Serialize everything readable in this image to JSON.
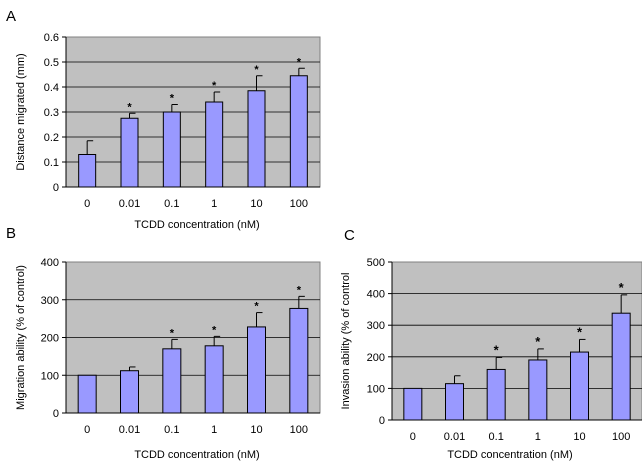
{
  "colors": {
    "plot_bg": "#c0c0c0",
    "bar_fill": "#9999ff",
    "bar_stroke": "#000000",
    "grid": "#000000"
  },
  "chart_data": [
    {
      "type": "bar",
      "panel_label": "A",
      "categories": [
        "0",
        "0.01",
        "0.1",
        "1",
        "10",
        "100"
      ],
      "values": [
        0.13,
        0.275,
        0.3,
        0.34,
        0.385,
        0.445
      ],
      "errors": [
        0.055,
        0.02,
        0.03,
        0.04,
        0.06,
        0.03
      ],
      "significance": [
        "",
        "*",
        "*",
        "*",
        "*",
        "*"
      ],
      "xlabel": "TCDD concentration (nM)",
      "ylabel": "Distance migrated (mm)",
      "ylim": [
        0,
        0.6
      ],
      "yticks": [
        "0",
        "0.1",
        "0.2",
        "0.3",
        "0.4",
        "0.5",
        "0.6"
      ],
      "grid": true
    },
    {
      "type": "bar",
      "panel_label": "B",
      "categories": [
        "0",
        "0.01",
        "0.1",
        "1",
        "10",
        "100"
      ],
      "values": [
        100,
        112,
        170,
        178,
        228,
        277
      ],
      "errors": [
        0,
        10,
        25,
        25,
        38,
        32
      ],
      "significance": [
        "",
        "",
        "*",
        "*",
        "*",
        "*"
      ],
      "xlabel": "TCDD concentration (nM)",
      "ylabel": "Migration ability (% of control)",
      "ylim": [
        0,
        400
      ],
      "yticks": [
        "0",
        "100",
        "200",
        "300",
        "400"
      ],
      "grid": true
    },
    {
      "type": "bar",
      "panel_label": "C",
      "categories": [
        "0",
        "0.01",
        "0.1",
        "1",
        "10",
        "100"
      ],
      "values": [
        100,
        115,
        160,
        190,
        215,
        338
      ],
      "errors": [
        0,
        25,
        38,
        35,
        40,
        58
      ],
      "significance": [
        "",
        "",
        "*",
        "*",
        "*",
        "*"
      ],
      "xlabel": "TCDD concentration (nM)",
      "ylabel": "Invasion ability (% of control",
      "ylim": [
        0,
        500
      ],
      "yticks": [
        "0",
        "100",
        "200",
        "300",
        "400",
        "500"
      ],
      "grid": true
    }
  ]
}
